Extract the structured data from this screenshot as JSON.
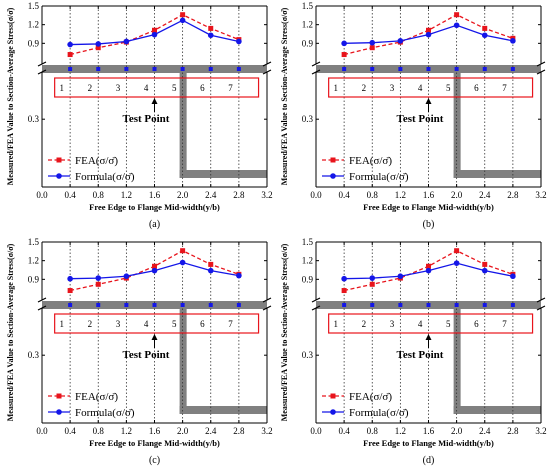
{
  "figure": {
    "background": "#ffffff",
    "colors": {
      "fea": "#e8141c",
      "formula": "#1416e8",
      "section": "#808080",
      "box": "#e8141c",
      "frame": "#000000"
    }
  },
  "shared": {
    "ylabel": "Measured/FEA Value to Section-Average Stress(σ/σ̄)",
    "xlabel": "Free Edge to Flange Mid-width(y/b)",
    "x_ticks": [
      "0.0",
      "0.4",
      "0.8",
      "1.2",
      "1.6",
      "2.0",
      "2.4",
      "2.8",
      "3.2"
    ],
    "upper_y_ticks": [
      "0.9",
      "1.2",
      "1.5"
    ],
    "lower_y_ticks": [
      "0.3"
    ],
    "legend": {
      "fea": "FEA(σ/σ̄)",
      "formula": "Formula(σ/σ̄)"
    },
    "annotation": "Test Point",
    "points": [
      "1",
      "2",
      "3",
      "4",
      "5",
      "6",
      "7"
    ]
  },
  "chart_data": [
    {
      "type": "line",
      "panel_label": "(a)",
      "x": [
        0.4,
        0.8,
        1.2,
        1.6,
        2.0,
        2.4,
        2.8
      ],
      "xlim": [
        0.0,
        3.2
      ],
      "ylim_upper": [
        0.6,
        1.5
      ],
      "ylim_lower": [
        0.0,
        0.5
      ],
      "xlabel": "Free Edge to Flange Mid-width(y/b)",
      "ylabel": "Measured/FEA Value to Section-Average Stress(σ/σ̄)",
      "legend_position": "lower-left",
      "series": [
        {
          "name": "FEA(σ/σ̄)",
          "values": [
            0.72,
            0.83,
            0.92,
            1.11,
            1.36,
            1.14,
            0.96
          ]
        },
        {
          "name": "Formula(σ/σ̄)",
          "values": [
            0.88,
            0.89,
            0.93,
            1.04,
            1.27,
            1.03,
            0.93
          ]
        }
      ]
    },
    {
      "type": "line",
      "panel_label": "(b)",
      "x": [
        0.4,
        0.8,
        1.2,
        1.6,
        2.0,
        2.4,
        2.8
      ],
      "xlim": [
        0.0,
        3.2
      ],
      "ylim_upper": [
        0.6,
        1.5
      ],
      "ylim_lower": [
        0.0,
        0.5
      ],
      "xlabel": "Free Edge to Flange Mid-width(y/b)",
      "ylabel": "Measured/FEA Value to Section-Average Stress(σ/σ̄)",
      "legend_position": "lower-left",
      "series": [
        {
          "name": "FEA(σ/σ̄)",
          "values": [
            0.72,
            0.83,
            0.92,
            1.11,
            1.36,
            1.14,
            0.98
          ]
        },
        {
          "name": "Formula(σ/σ̄)",
          "values": [
            0.9,
            0.91,
            0.94,
            1.04,
            1.19,
            1.03,
            0.94
          ]
        }
      ]
    },
    {
      "type": "line",
      "panel_label": "(c)",
      "x": [
        0.4,
        0.8,
        1.2,
        1.6,
        2.0,
        2.4,
        2.8
      ],
      "xlim": [
        0.0,
        3.2
      ],
      "ylim_upper": [
        0.6,
        1.5
      ],
      "ylim_lower": [
        0.0,
        0.5
      ],
      "xlabel": "Free Edge to Flange Mid-width(y/b)",
      "ylabel": "Measured/FEA Value to Section-Average Stress(σ/σ̄)",
      "legend_position": "lower-left",
      "series": [
        {
          "name": "FEA(σ/σ̄)",
          "values": [
            0.72,
            0.82,
            0.92,
            1.11,
            1.36,
            1.14,
            0.98
          ]
        },
        {
          "name": "Formula(σ/σ̄)",
          "values": [
            0.91,
            0.92,
            0.95,
            1.04,
            1.17,
            1.04,
            0.96
          ]
        }
      ]
    },
    {
      "type": "line",
      "panel_label": "(d)",
      "x": [
        0.4,
        0.8,
        1.2,
        1.6,
        2.0,
        2.4,
        2.8
      ],
      "xlim": [
        0.0,
        3.2
      ],
      "ylim_upper": [
        0.6,
        1.5
      ],
      "ylim_lower": [
        0.0,
        0.5
      ],
      "xlabel": "Free Edge to Flange Mid-width(y/b)",
      "ylabel": "Measured/FEA Value to Section-Average Stress(σ/σ̄)",
      "legend_position": "lower-left",
      "series": [
        {
          "name": "FEA(σ/σ̄)",
          "values": [
            0.72,
            0.82,
            0.92,
            1.11,
            1.36,
            1.14,
            0.98
          ]
        },
        {
          "name": "Formula(σ/σ̄)",
          "values": [
            0.91,
            0.92,
            0.95,
            1.04,
            1.16,
            1.04,
            0.95
          ]
        }
      ]
    }
  ]
}
